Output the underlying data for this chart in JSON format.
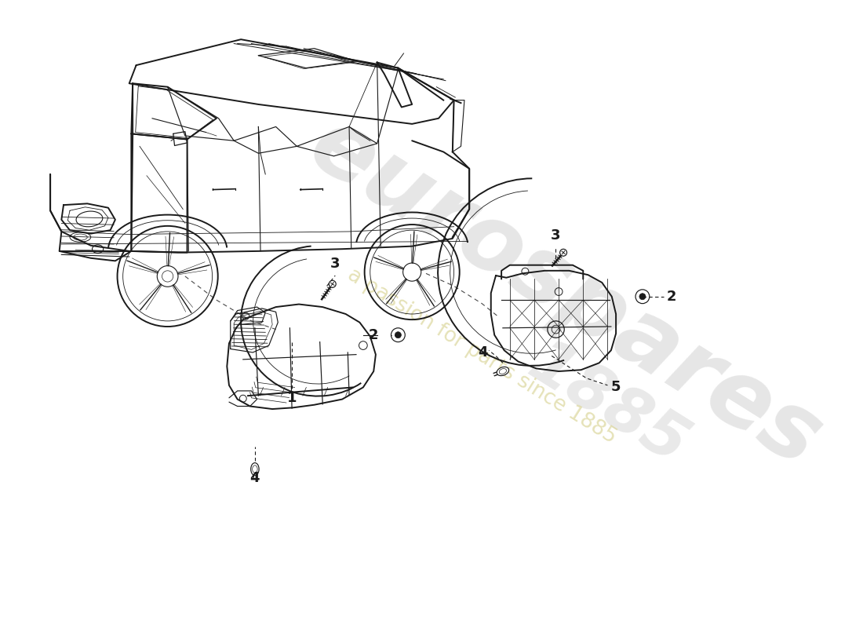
{
  "bg_color": "#ffffff",
  "line_color": "#1a1a1a",
  "watermark_main": "eurospares",
  "watermark_sub": "a passion for parts since 1885",
  "watermark_year": "1885",
  "wm_main_color": "#c8c8c8",
  "wm_sub_color": "#ddd8a0",
  "wm_year_color": "#c8c8c8",
  "part_labels": [
    "1",
    "2",
    "3",
    "4",
    "5"
  ],
  "lw_main": 1.4,
  "lw_thin": 0.85,
  "lw_detail": 0.55
}
